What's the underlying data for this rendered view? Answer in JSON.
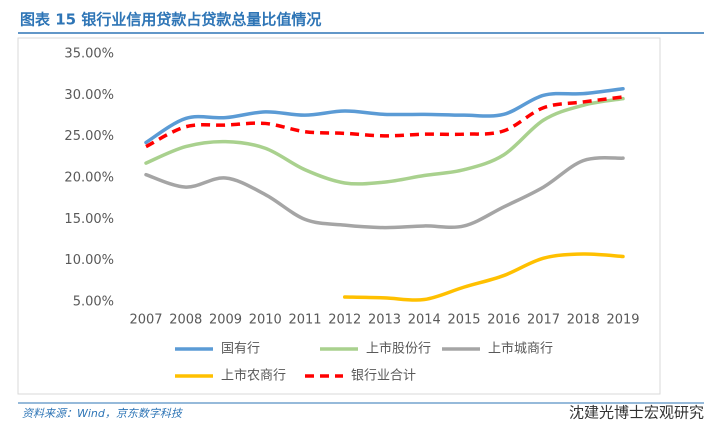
{
  "chart_data": {
    "type": "line",
    "title": "图表 15 银行业信用贷款占贷款总量比值情况",
    "source": "资料来源：Wind，京东数字科技",
    "watermark": "沈建光博士宏观研究",
    "categories": [
      "2007",
      "2008",
      "2009",
      "2010",
      "2011",
      "2012",
      "2013",
      "2014",
      "2015",
      "2016",
      "2017",
      "2018",
      "2019"
    ],
    "series": [
      {
        "name": "国有行",
        "color": "#5b9bd5",
        "dash": false,
        "values": [
          24.3,
          27.2,
          27.3,
          28.0,
          27.6,
          28.1,
          27.7,
          27.7,
          27.6,
          27.7,
          30.0,
          30.2,
          30.8
        ]
      },
      {
        "name": "上市股份行",
        "color": "#a9d18e",
        "dash": false,
        "values": [
          21.8,
          23.8,
          24.4,
          23.6,
          21.0,
          19.4,
          19.5,
          20.3,
          21.0,
          22.8,
          27.0,
          28.8,
          29.6
        ]
      },
      {
        "name": "上市城商行",
        "color": "#a5a5a5",
        "dash": false,
        "values": [
          20.4,
          18.9,
          20.0,
          18.0,
          15.0,
          14.3,
          14.0,
          14.2,
          14.2,
          16.5,
          18.9,
          22.1,
          22.4
        ]
      },
      {
        "name": "上市农商行",
        "color": "#ffc000",
        "dash": false,
        "values": [
          null,
          null,
          null,
          null,
          null,
          5.6,
          5.5,
          5.3,
          6.8,
          8.2,
          10.3,
          10.8,
          10.5
        ]
      },
      {
        "name": "银行业合计",
        "color": "#ff0000",
        "dash": true,
        "values": [
          23.8,
          26.2,
          26.4,
          26.6,
          25.6,
          25.4,
          25.1,
          25.3,
          25.3,
          25.7,
          28.5,
          29.2,
          29.8
        ]
      }
    ],
    "ylim": [
      5,
      35
    ],
    "yticks": [
      {
        "value": 5,
        "label": "5.00%"
      },
      {
        "value": 10,
        "label": "10.00%"
      },
      {
        "value": 15,
        "label": "15.00%"
      },
      {
        "value": 20,
        "label": "20.00%"
      },
      {
        "value": 25,
        "label": "25.00%"
      },
      {
        "value": 30,
        "label": "30.00%"
      },
      {
        "value": 35,
        "label": "35.00%"
      }
    ],
    "grid": false
  }
}
